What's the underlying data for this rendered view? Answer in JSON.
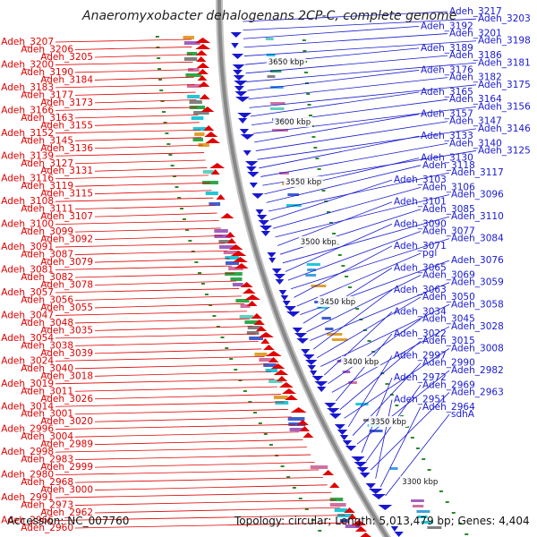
{
  "title": "Anaeromyxobacter dehalogenans 2CP-C, complete genome",
  "footer": {
    "accession": "Accession: NC_007760",
    "summary": "Topology: circular; Length: 5,013,479 bp; Genes: 4,404"
  },
  "kbp_ticks": [
    "3650 kbp",
    "3600 kbp",
    "3550 kbp",
    "3500 kbp",
    "3450 kbp",
    "3400 kbp",
    "3350 kbp",
    "3300 kbp"
  ],
  "colors": {
    "left_strand": "#e00000",
    "right_strand": "#1818d0",
    "backbone": "#888888",
    "tick": "#2a8a2a"
  },
  "left_labels": [
    "Adeh_3207",
    "Adeh_3206",
    "Adeh_3205",
    "Adeh_3200",
    "Adeh_3190",
    "Adeh_3184",
    "Adeh_3183",
    "Adeh_3177",
    "Adeh_3173",
    "Adeh_3166",
    "Adeh_3163",
    "Adeh_3155",
    "Adeh_3152",
    "Adeh_3145",
    "Adeh_3136",
    "Adeh_3139",
    "Adeh_3127",
    "Adeh_3131",
    "Adeh_3116",
    "Adeh_3119",
    "Adeh_3115",
    "Adeh_3108",
    "Adeh_3111",
    "Adeh_3107",
    "Adeh_3100",
    "Adeh_3099",
    "Adeh_3092",
    "Adeh_3091",
    "Adeh_3087",
    "Adeh_3079",
    "Adeh_3081",
    "Adeh_3082",
    "Adeh_3078",
    "Adeh_3057",
    "Adeh_3056",
    "Adeh_3055",
    "Adeh_3047",
    "Adeh_3048",
    "Adeh_3035",
    "Adeh_3054",
    "Adeh_3038",
    "Adeh_3039",
    "Adeh_3024",
    "Adeh_3040",
    "Adeh_3018",
    "Adeh_3019",
    "Adeh_3011",
    "Adeh_3026",
    "Adeh_3014",
    "Adeh_3001",
    "Adeh_3020",
    "Adeh_2996",
    "Adeh_3004",
    "Adeh_2989",
    "Adeh_2998",
    "Adeh_2983",
    "Adeh_2999",
    "Adeh_2980",
    "Adeh_2968",
    "Adeh_3000",
    "Adeh_2991",
    "Adeh_2973",
    "Adeh_2962",
    "Adeh_2966",
    "Adeh_2960"
  ],
  "right_labels": [
    "Adeh_3217",
    "Adeh_3203",
    "Adeh_3192",
    "Adeh_3201",
    "Adeh_3198",
    "Adeh_3189",
    "Adeh_3186",
    "Adeh_3181",
    "Adeh_3176",
    "Adeh_3182",
    "Adeh_3175",
    "Adeh_3165",
    "Adeh_3164",
    "Adeh_3156",
    "Adeh_3157",
    "Adeh_3147",
    "Adeh_3146",
    "Adeh_3133",
    "Adeh_3140",
    "Adeh_3125",
    "Adeh_3130",
    "Adeh_3118",
    "Adeh_3117",
    "Adeh_3103",
    "Adeh_3106",
    "Adeh_3096",
    "Adeh_3101",
    "Adeh_3085",
    "Adeh_3110",
    "Adeh_3090",
    "Adeh_3077",
    "Adeh_3084",
    "Adeh_3071",
    "pgl",
    "Adeh_3076",
    "Adeh_3065",
    "Adeh_3069",
    "Adeh_3059",
    "Adeh_3063",
    "Adeh_3050",
    "Adeh_3058",
    "Adeh_3034",
    "Adeh_3045",
    "Adeh_3028",
    "Adeh_3022",
    "Adeh_3015",
    "Adeh_3008",
    "Adeh_2997",
    "Adeh_2990",
    "Adeh_2982",
    "Adeh_2972",
    "Adeh_2969",
    "Adeh_2963",
    "Adeh_2951",
    "Adeh_2964",
    "sdhA"
  ]
}
